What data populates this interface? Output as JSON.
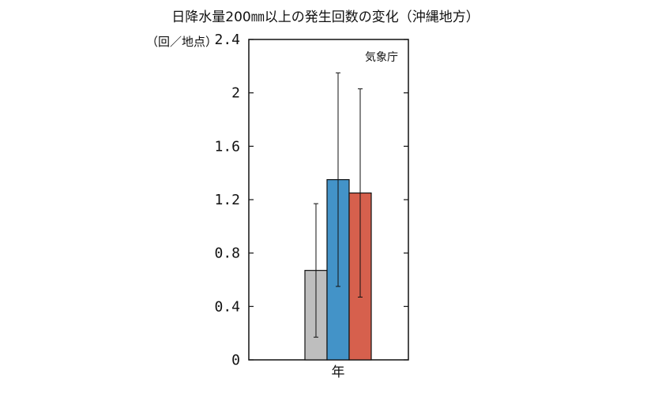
{
  "chart_data": {
    "type": "bar",
    "title": "日降水量200㎜以上の発生回数の変化（沖縄地方）",
    "ylabel": "（回／地点）",
    "source_label": "気象庁",
    "categories": [
      "年"
    ],
    "ylim": [
      0,
      2.4
    ],
    "yticks": [
      0,
      0.4,
      0.8,
      1.2,
      1.6,
      2,
      2.4
    ],
    "ytick_labels": [
      "0",
      "0.4",
      "0.8",
      "1.2",
      "1.6",
      "2",
      "2.4"
    ],
    "grid": false,
    "series": [
      {
        "values": [
          0.67
        ],
        "error_low": [
          0.17
        ],
        "error_high": [
          1.17
        ],
        "color": "#bebebe"
      },
      {
        "values": [
          1.35
        ],
        "error_low": [
          0.55
        ],
        "error_high": [
          2.15
        ],
        "color": "#4393c8"
      },
      {
        "values": [
          1.25
        ],
        "error_low": [
          0.47
        ],
        "error_high": [
          2.03
        ],
        "color": "#d6604d"
      }
    ]
  }
}
